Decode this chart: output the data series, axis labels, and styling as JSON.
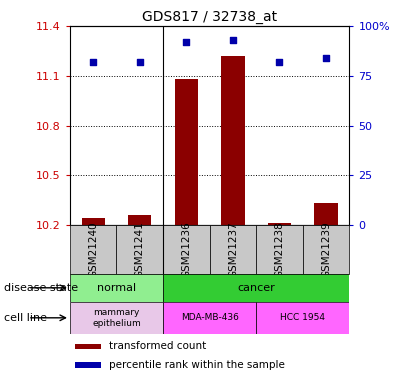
{
  "title": "GDS817 / 32738_at",
  "samples": [
    "GSM21240",
    "GSM21241",
    "GSM21236",
    "GSM21237",
    "GSM21238",
    "GSM21239"
  ],
  "transformed_counts": [
    10.24,
    10.26,
    11.08,
    11.22,
    10.21,
    10.33
  ],
  "percentile_ranks": [
    82,
    82,
    92,
    93,
    82,
    84
  ],
  "ylim_left": [
    10.2,
    11.4
  ],
  "ylim_right": [
    0,
    100
  ],
  "yticks_left": [
    10.2,
    10.5,
    10.8,
    11.1,
    11.4
  ],
  "yticks_right": [
    0,
    25,
    50,
    75,
    100
  ],
  "bar_color": "#8B0000",
  "dot_color": "#0000AA",
  "disease_normal_color": "#90EE90",
  "disease_cancer_color": "#33CC33",
  "cell_line_normal_color": "#E8C8E8",
  "cell_line_mda_color": "#FF66FF",
  "cell_line_hcc_color": "#FF66FF",
  "sample_box_color": "#C8C8C8",
  "title_fontsize": 10,
  "tick_fontsize": 8,
  "label_fontsize": 8,
  "sample_fontsize": 7.5,
  "legend_fontsize": 7.5
}
